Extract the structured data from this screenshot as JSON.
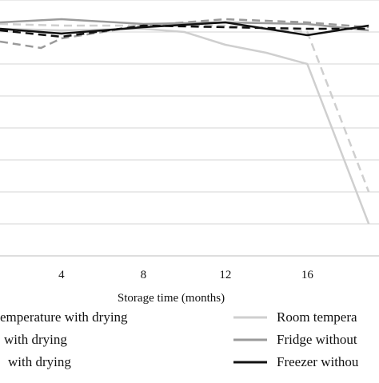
{
  "chart_data": {
    "type": "line",
    "title": "",
    "xlabel": "Storage time (months)",
    "ylabel": "",
    "x_ticks": [
      4,
      8,
      12,
      16
    ],
    "x_ticks_text": [
      "4",
      "8",
      "12",
      "16"
    ],
    "xlim": [
      1,
      19.5
    ],
    "ylim": [
      0,
      8
    ],
    "grid": "horizontal",
    "legend_position": "bottom",
    "series": [
      {
        "name": "Room temperature with drying",
        "color": "#cfcfcf",
        "dash": "solid",
        "width": 2.5,
        "x": [
          1,
          4,
          8,
          10,
          12,
          14,
          16,
          19
        ],
        "y": [
          7.1,
          7.05,
          7.1,
          7.0,
          6.6,
          6.35,
          6.0,
          1.0
        ]
      },
      {
        "name": "Room temperature without drying",
        "color": "#cfcfcf",
        "dash": "dashed",
        "width": 2.5,
        "x": [
          1,
          4,
          8,
          12,
          16,
          19
        ],
        "y": [
          7.25,
          7.2,
          7.2,
          7.2,
          7.0,
          2.0
        ]
      },
      {
        "name": "Fridge with drying",
        "color": "#9a9a9a",
        "dash": "dashed",
        "width": 2.5,
        "x": [
          1,
          3,
          4,
          8,
          12,
          16,
          19
        ],
        "y": [
          6.7,
          6.5,
          6.8,
          7.2,
          7.4,
          7.3,
          7.15
        ]
      },
      {
        "name": "Fridge without drying",
        "color": "#9a9a9a",
        "dash": "solid",
        "width": 2.5,
        "x": [
          1,
          4,
          8,
          12,
          16,
          19
        ],
        "y": [
          7.3,
          7.4,
          7.25,
          7.3,
          7.25,
          7.05
        ]
      },
      {
        "name": "Freezer with drying",
        "color": "#111111",
        "dash": "dashed",
        "width": 2.5,
        "x": [
          1,
          4,
          8,
          12,
          16,
          19
        ],
        "y": [
          7.05,
          6.85,
          7.2,
          7.15,
          7.1,
          7.1
        ]
      },
      {
        "name": "Freezer without drying",
        "color": "#111111",
        "dash": "solid",
        "width": 2.5,
        "x": [
          1,
          4,
          8,
          12,
          16,
          19
        ],
        "y": [
          7.1,
          6.95,
          7.15,
          7.3,
          6.9,
          7.2
        ]
      }
    ],
    "legend_text": [
      "emperature with drying",
      "Room tempera",
      "with drying",
      "Fridge without",
      "with drying",
      "Freezer withou"
    ]
  }
}
